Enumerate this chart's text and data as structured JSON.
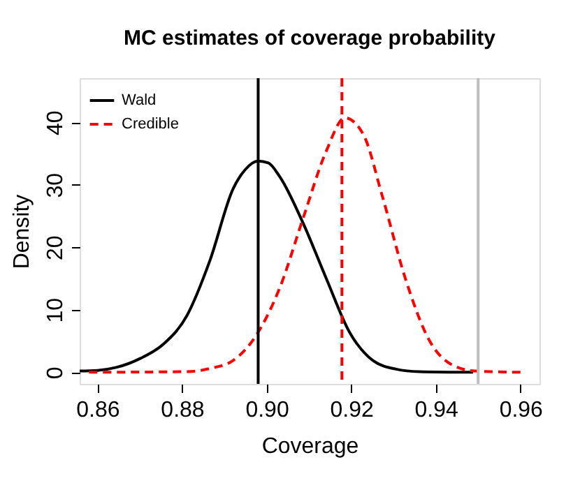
{
  "chart_data": {
    "type": "line",
    "title": "MC estimates of coverage probability",
    "xlabel": "Coverage",
    "ylabel": "Density",
    "xlim": [
      0.8558,
      0.9645
    ],
    "xticks": [
      {
        "value": 0.86,
        "label": "0.86"
      },
      {
        "value": 0.88,
        "label": "0.88"
      },
      {
        "value": 0.9,
        "label": "0.90"
      },
      {
        "value": 0.92,
        "label": "0.92"
      },
      {
        "value": 0.94,
        "label": "0.94"
      },
      {
        "value": 0.96,
        "label": "0.96"
      }
    ],
    "ylim": [
      -1.86,
      47.06
    ],
    "yticks": [
      0,
      10,
      20,
      30,
      40
    ],
    "grid": false,
    "legend": "top left",
    "series": [
      {
        "name": "Wald",
        "color": "#000000",
        "line_style": "solid",
        "x": [
          0.8558,
          0.86,
          0.8646,
          0.8701,
          0.8756,
          0.8811,
          0.8866,
          0.8921,
          0.8949,
          0.898,
          0.9004,
          0.9031,
          0.9086,
          0.9141,
          0.9196,
          0.9251,
          0.9306,
          0.9361,
          0.9488
        ],
        "values": [
          0.2,
          0.3,
          0.8,
          2.2,
          4.5,
          9,
          17.9,
          29.4,
          32.4,
          33.8,
          33.5,
          31.3,
          23.9,
          15,
          6.4,
          1.9,
          0.5,
          0.1,
          0
        ]
      },
      {
        "name": "Credible",
        "color": "#ff0000",
        "line_style": "dashed",
        "x": [
          0.858,
          0.8811,
          0.8866,
          0.8921,
          0.898,
          0.9031,
          0.9086,
          0.9141,
          0.9185,
          0.9229,
          0.9273,
          0.9328,
          0.9383,
          0.9438,
          0.9493,
          0.96
        ],
        "values": [
          0,
          0.1,
          0.6,
          1.9,
          6.4,
          13.5,
          24.6,
          35.4,
          40.7,
          38,
          28.3,
          15,
          5.3,
          1.2,
          0.2,
          0
        ]
      }
    ],
    "ref_lines": [
      {
        "axis": "x",
        "value": 0.898,
        "color": "#000000",
        "line_style": "solid"
      },
      {
        "axis": "x",
        "value": 0.9178,
        "color": "#ff0000",
        "line_style": "dashed"
      },
      {
        "axis": "x",
        "value": 0.95,
        "color": "#bebebe",
        "line_style": "solid"
      }
    ]
  }
}
